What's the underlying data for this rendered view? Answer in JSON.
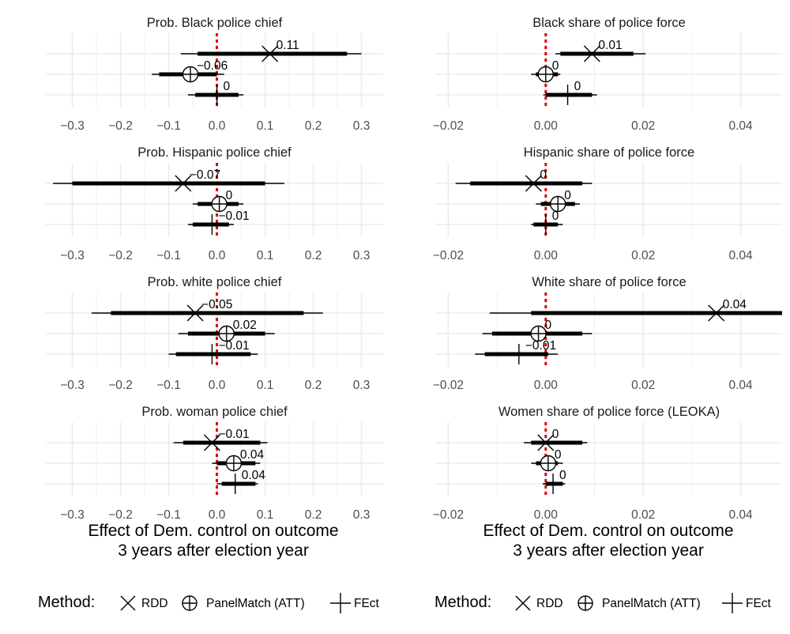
{
  "colors": {
    "grid": "#ebebeb",
    "zero_line": "#dd0000",
    "estimate": "#000000"
  },
  "legend": {
    "title": "Method:",
    "items": [
      {
        "symbol": "cross",
        "label": "RDD"
      },
      {
        "symbol": "circle-plus",
        "label": "PanelMatch (ATT)"
      },
      {
        "symbol": "plus",
        "label": "FEct"
      }
    ]
  },
  "columns": [
    {
      "xlabel_line1": "Effect of Dem. control on outcome",
      "xlabel_line2": "3 years after election year"
    },
    {
      "xlabel_line1": "Effect of Dem. control on outcome",
      "xlabel_line2": "3 years after election year"
    }
  ],
  "chart_data": [
    {
      "type": "coefficient-plot",
      "title": "Prob. Black police chief",
      "column": 0,
      "row": 0,
      "xlim": [
        -0.355,
        0.345
      ],
      "xticks": [
        -0.3,
        -0.2,
        -0.1,
        0.0,
        0.1,
        0.2,
        0.3
      ],
      "xtick_labels": [
        "−0.3",
        "−0.2",
        "−0.1",
        "0.0",
        "0.1",
        "0.2",
        "0.3"
      ],
      "estimates": [
        {
          "method": "RDD",
          "estimate": 0.11,
          "label": "0.11",
          "ci95": [
            -0.075,
            0.3
          ],
          "ci90": [
            -0.04,
            0.27
          ]
        },
        {
          "method": "PanelMatch (ATT)",
          "estimate": -0.055,
          "label": "−0.06",
          "ci95": [
            -0.135,
            0.015
          ],
          "ci90": [
            -0.12,
            0.0
          ]
        },
        {
          "method": "FEct",
          "estimate": 0.0,
          "label": "0",
          "ci95": [
            -0.06,
            0.055
          ],
          "ci90": [
            -0.045,
            0.045
          ]
        }
      ]
    },
    {
      "type": "coefficient-plot",
      "title": "Prob. Hispanic police chief",
      "column": 0,
      "row": 1,
      "xlim": [
        -0.355,
        0.345
      ],
      "xticks": [
        -0.3,
        -0.2,
        -0.1,
        0.0,
        0.1,
        0.2,
        0.3
      ],
      "xtick_labels": [
        "−0.3",
        "−0.2",
        "−0.1",
        "0.0",
        "0.1",
        "0.2",
        "0.3"
      ],
      "estimates": [
        {
          "method": "RDD",
          "estimate": -0.07,
          "label": "−0.07",
          "ci95": [
            -0.34,
            0.14
          ],
          "ci90": [
            -0.3,
            0.1
          ]
        },
        {
          "method": "PanelMatch (ATT)",
          "estimate": 0.005,
          "label": "0",
          "ci95": [
            -0.05,
            0.055
          ],
          "ci90": [
            -0.04,
            0.045
          ]
        },
        {
          "method": "FEct",
          "estimate": -0.01,
          "label": "−0.01",
          "ci95": [
            -0.06,
            0.035
          ],
          "ci90": [
            -0.05,
            0.025
          ]
        }
      ]
    },
    {
      "type": "coefficient-plot",
      "title": "Prob. white police chief",
      "column": 0,
      "row": 2,
      "xlim": [
        -0.355,
        0.345
      ],
      "xticks": [
        -0.3,
        -0.2,
        -0.1,
        0.0,
        0.1,
        0.2,
        0.3
      ],
      "xtick_labels": [
        "−0.3",
        "−0.2",
        "−0.1",
        "0.0",
        "0.1",
        "0.2",
        "0.3"
      ],
      "estimates": [
        {
          "method": "RDD",
          "estimate": -0.045,
          "label": "−0.05",
          "ci95": [
            -0.26,
            0.22
          ],
          "ci90": [
            -0.22,
            0.18
          ]
        },
        {
          "method": "PanelMatch (ATT)",
          "estimate": 0.02,
          "label": "0.02",
          "ci95": [
            -0.08,
            0.12
          ],
          "ci90": [
            -0.06,
            0.1
          ]
        },
        {
          "method": "FEct",
          "estimate": -0.01,
          "label": "−0.01",
          "ci95": [
            -0.1,
            0.085
          ],
          "ci90": [
            -0.085,
            0.07
          ]
        }
      ]
    },
    {
      "type": "coefficient-plot",
      "title": "Prob. woman police chief",
      "column": 0,
      "row": 3,
      "xlim": [
        -0.355,
        0.345
      ],
      "xticks": [
        -0.3,
        -0.2,
        -0.1,
        0.0,
        0.1,
        0.2,
        0.3
      ],
      "xtick_labels": [
        "−0.3",
        "−0.2",
        "−0.1",
        "0.0",
        "0.1",
        "0.2",
        "0.3"
      ],
      "estimates": [
        {
          "method": "RDD",
          "estimate": -0.01,
          "label": "−0.01",
          "ci95": [
            -0.09,
            0.105
          ],
          "ci90": [
            -0.07,
            0.09
          ]
        },
        {
          "method": "PanelMatch (ATT)",
          "estimate": 0.035,
          "label": "0.04",
          "ci95": [
            -0.01,
            0.09
          ],
          "ci90": [
            0.0,
            0.08
          ]
        },
        {
          "method": "FEct",
          "estimate": 0.038,
          "label": "0.04",
          "ci95": [
            0.0,
            0.085
          ],
          "ci90": [
            0.01,
            0.08
          ]
        }
      ]
    },
    {
      "type": "coefficient-plot",
      "title": "Black share of police force",
      "column": 1,
      "row": 0,
      "xlim": [
        -0.0225,
        0.0485
      ],
      "xticks": [
        -0.02,
        0.0,
        0.02,
        0.04
      ],
      "xtick_labels": [
        "−0.02",
        "0.00",
        "0.02",
        "0.04"
      ],
      "estimates": [
        {
          "method": "RDD",
          "estimate": 0.0095,
          "label": "0.01",
          "ci95": [
            0.002,
            0.0205
          ],
          "ci90": [
            0.003,
            0.018
          ]
        },
        {
          "method": "PanelMatch (ATT)",
          "estimate": 0.0,
          "label": "0",
          "ci95": [
            -0.003,
            0.003
          ],
          "ci90": [
            -0.002,
            0.0025
          ]
        },
        {
          "method": "FEct",
          "estimate": 0.0045,
          "label": "0",
          "ci95": [
            -0.0005,
            0.0105
          ],
          "ci90": [
            0.0,
            0.0095
          ]
        }
      ]
    },
    {
      "type": "coefficient-plot",
      "title": "Hispanic share of police force",
      "column": 1,
      "row": 1,
      "xlim": [
        -0.0225,
        0.0485
      ],
      "xticks": [
        -0.02,
        0.0,
        0.02,
        0.04
      ],
      "xtick_labels": [
        "−0.02",
        "0.00",
        "0.02",
        "0.04"
      ],
      "estimates": [
        {
          "method": "RDD",
          "estimate": -0.0025,
          "label": "0",
          "ci95": [
            -0.0185,
            0.0095
          ],
          "ci90": [
            -0.0155,
            0.0075
          ]
        },
        {
          "method": "PanelMatch (ATT)",
          "estimate": 0.0025,
          "label": "0",
          "ci95": [
            -0.002,
            0.007
          ],
          "ci90": [
            -0.001,
            0.006
          ]
        },
        {
          "method": "FEct",
          "estimate": 0.0,
          "label": "0",
          "ci95": [
            -0.003,
            0.0035
          ],
          "ci90": [
            -0.0025,
            0.0025
          ]
        }
      ]
    },
    {
      "type": "coefficient-plot",
      "title": "White share of police force",
      "column": 1,
      "row": 2,
      "xlim": [
        -0.0225,
        0.0485
      ],
      "xticks": [
        -0.02,
        0.0,
        0.02,
        0.04
      ],
      "xtick_labels": [
        "−0.02",
        "0.00",
        "0.02",
        "0.04"
      ],
      "estimates": [
        {
          "method": "RDD",
          "estimate": 0.035,
          "label": "0.04",
          "ci95": [
            -0.0115,
            0.0485
          ],
          "ci90": [
            -0.003,
            0.0485
          ]
        },
        {
          "method": "PanelMatch (ATT)",
          "estimate": -0.0015,
          "label": "0",
          "ci95": [
            -0.013,
            0.0095
          ],
          "ci90": [
            -0.011,
            0.0075
          ]
        },
        {
          "method": "FEct",
          "estimate": -0.0055,
          "label": "−0.01",
          "ci95": [
            -0.0145,
            0.0025
          ],
          "ci90": [
            -0.0125,
            0.0005
          ]
        }
      ]
    },
    {
      "type": "coefficient-plot",
      "title": "Women share of police force (LEOKA)",
      "column": 1,
      "row": 3,
      "xlim": [
        -0.0225,
        0.0485
      ],
      "xticks": [
        -0.02,
        0.0,
        0.02,
        0.04
      ],
      "xtick_labels": [
        "−0.02",
        "0.00",
        "0.02",
        "0.04"
      ],
      "estimates": [
        {
          "method": "RDD",
          "estimate": 0.0,
          "label": "0",
          "ci95": [
            -0.0045,
            0.0085
          ],
          "ci90": [
            -0.003,
            0.0075
          ]
        },
        {
          "method": "PanelMatch (ATT)",
          "estimate": 0.0005,
          "label": "0",
          "ci95": [
            -0.003,
            0.0035
          ],
          "ci90": [
            -0.002,
            0.0025
          ]
        },
        {
          "method": "FEct",
          "estimate": 0.0015,
          "label": "0",
          "ci95": [
            -0.0005,
            0.004
          ],
          "ci90": [
            0.0,
            0.0035
          ]
        }
      ]
    }
  ]
}
